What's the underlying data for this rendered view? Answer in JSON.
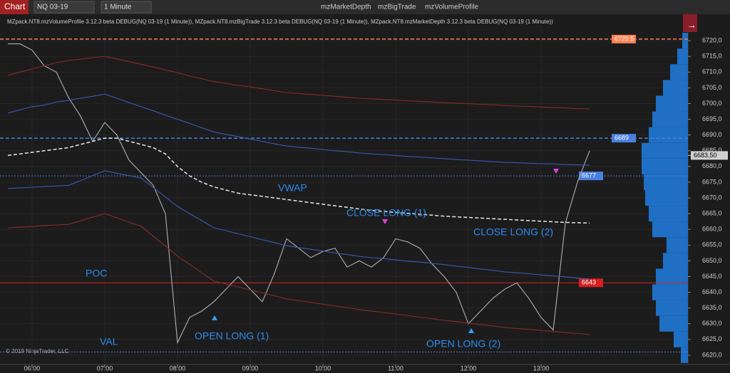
{
  "ui": {
    "window_title": "Chart",
    "instrument": "NQ 03-19",
    "interval": "1 Minute",
    "tools": [
      "mzMarketDepth",
      "mzBigTrade",
      "mzVolumeProfile"
    ],
    "indicator_line": "MZpack.NT8.mzVolumeProfile 3.12.3 beta DEBUG(NQ 03-19 (1 Minute)), MZpack.NT8.mzBigTrade 3.12.3 beta DEBUG(NQ 03-19 (1 Minute)), MZpack.NT8.mzMarketDepth 3.12.3 beta DEBUG(NQ 03-19 (1 Minute))",
    "copyright": "© 2019 NinjaTrader, LLC"
  },
  "chart_data": {
    "type": "line",
    "x": [
      "05:40",
      "05:50",
      "06:00",
      "06:10",
      "06:20",
      "06:30",
      "06:40",
      "06:50",
      "07:00",
      "07:10",
      "07:20",
      "07:30",
      "07:40",
      "07:50",
      "08:00",
      "08:10",
      "08:20",
      "08:30",
      "08:40",
      "08:50",
      "09:00",
      "09:10",
      "09:20",
      "09:30",
      "09:40",
      "09:50",
      "10:00",
      "10:10",
      "10:20",
      "10:30",
      "10:40",
      "10:50",
      "11:00",
      "11:10",
      "11:20",
      "11:30",
      "11:40",
      "11:50",
      "12:00",
      "12:10",
      "12:20",
      "12:30",
      "12:40",
      "12:50",
      "13:00",
      "13:10",
      "13:20",
      "13:30",
      "13:40"
    ],
    "xticks": [
      "06:00",
      "07:00",
      "08:00",
      "09:00",
      "10:00",
      "11:00",
      "12:00",
      "13:00"
    ],
    "ylim": [
      6617.5,
      6727.5
    ],
    "yticks": [
      {
        "value": 6620,
        "label": "6620,0"
      },
      {
        "value": 6625,
        "label": "6625,0"
      },
      {
        "value": 6630,
        "label": "6630,0"
      },
      {
        "value": 6635,
        "label": "6635,0"
      },
      {
        "value": 6640,
        "label": "6640,0"
      },
      {
        "value": 6645,
        "label": "6645,0"
      },
      {
        "value": 6650,
        "label": "6650,0"
      },
      {
        "value": 6655,
        "label": "6655,0"
      },
      {
        "value": 6660,
        "label": "6660,0"
      },
      {
        "value": 6665,
        "label": "6665,0"
      },
      {
        "value": 6670,
        "label": "6670,0"
      },
      {
        "value": 6675,
        "label": "6675,0"
      },
      {
        "value": 6680,
        "label": "6680,0"
      },
      {
        "value": 6685,
        "label": "6685,0"
      },
      {
        "value": 6690,
        "label": "6690,0"
      },
      {
        "value": 6695,
        "label": "6695,0"
      },
      {
        "value": 6700,
        "label": "6700,0"
      },
      {
        "value": 6705,
        "label": "6705,0"
      },
      {
        "value": 6710,
        "label": "6710,0"
      },
      {
        "value": 6715,
        "label": "6715,0"
      },
      {
        "value": 6720,
        "label": "6720,0"
      }
    ],
    "grid": true,
    "series": [
      {
        "color": "#b0b0b0",
        "dash": "solid",
        "values": [
          6719,
          6719,
          6717,
          6712,
          6710,
          6702,
          6696,
          6688,
          6694,
          6690,
          6682,
          6678,
          6674,
          6665,
          6624,
          6632,
          6634,
          6637,
          6641,
          6645,
          6641,
          6637,
          6646,
          6657,
          6654,
          6651,
          6653,
          6654,
          6648,
          6650,
          6648,
          6651,
          6657,
          6656,
          6654,
          6649,
          6645,
          6640,
          6630,
          6634,
          6638,
          6641,
          6643,
          6638,
          6632,
          6628,
          6662,
          6675,
          6685
        ]
      },
      {
        "color": "#e8e8e8",
        "dash": "dashed",
        "values": [
          6683.5,
          6684,
          6684.5,
          6685,
          6685.5,
          6686,
          6687,
          6688,
          6689,
          6689,
          6688,
          6687,
          6686,
          6684,
          6680,
          6677,
          6675,
          6673.5,
          6672.5,
          6671.5,
          6671,
          6670.5,
          6670,
          6669.5,
          6669,
          6668.5,
          6668,
          6667.5,
          6667,
          6666.5,
          6666,
          6665.7,
          6665.4,
          6665.1,
          6664.8,
          6664.5,
          6664.2,
          6664,
          6663.8,
          6663.6,
          6663.4,
          6663.2,
          6663,
          6662.8,
          6662.6,
          6662.4,
          6662.2,
          6662.1,
          6662
        ]
      },
      {
        "color": "#3b5bb5",
        "dash": "solid",
        "values": [
          6697,
          6698,
          6699,
          6699.5,
          6700.5,
          6701,
          6701.7,
          6702.3,
          6703,
          6701.7,
          6700.3,
          6699,
          6697.7,
          6696.3,
          6695,
          6693.7,
          6692.3,
          6691,
          6690.2,
          6689.5,
          6688.7,
          6688,
          6687.2,
          6686.5,
          6686.1,
          6685.8,
          6685.4,
          6685,
          6684.7,
          6684.3,
          6684,
          6683.8,
          6683.5,
          6683.2,
          6683,
          6682.7,
          6682.5,
          6682.2,
          6682,
          6681.8,
          6681.5,
          6681.3,
          6681.2,
          6681,
          6680.9,
          6680.8,
          6680.6,
          6680.5,
          6680.4
        ]
      },
      {
        "color": "#8b2a2a",
        "dash": "solid",
        "values": [
          6709,
          6710,
          6711,
          6712,
          6713,
          6713.7,
          6714.1,
          6714.6,
          6715,
          6714.2,
          6713.3,
          6712.5,
          6711.6,
          6710.7,
          6709.8,
          6708.8,
          6707.9,
          6707,
          6706.4,
          6705.8,
          6705.3,
          6704.7,
          6704.1,
          6703.5,
          6703.2,
          6702.9,
          6702.6,
          6702.3,
          6702,
          6701.7,
          6701.5,
          6701.3,
          6701.1,
          6700.9,
          6700.7,
          6700.5,
          6700.3,
          6700.1,
          6700,
          6699.8,
          6699.6,
          6699.4,
          6699.2,
          6699.1,
          6698.9,
          6698.7,
          6698.6,
          6698.4,
          6698.3
        ]
      },
      {
        "color": "#3b5bb5",
        "dash": "solid",
        "values": [
          6673,
          6673.2,
          6673.4,
          6673.6,
          6673.8,
          6674,
          6675.5,
          6677.1,
          6678.6,
          6677.8,
          6677.1,
          6676.3,
          6673.3,
          6670.3,
          6667.3,
          6665,
          6662.8,
          6660.5,
          6659.6,
          6658.6,
          6657.7,
          6656.7,
          6655.8,
          6654.8,
          6654.2,
          6653.7,
          6653.1,
          6652.5,
          6652,
          6651.4,
          6651,
          6650.7,
          6650.3,
          6649.9,
          6649.6,
          6649.2,
          6648.8,
          6648.3,
          6647.9,
          6647.4,
          6647,
          6646.5,
          6646.2,
          6645.9,
          6645.5,
          6645.2,
          6644.9,
          6644.5,
          6644.2
        ]
      },
      {
        "color": "#8b2a2a",
        "dash": "solid",
        "values": [
          6660.5,
          6660.7,
          6660.9,
          6661.2,
          6661.4,
          6661.6,
          6662.7,
          6663.9,
          6665,
          6663.7,
          6662.3,
          6661,
          6657.8,
          6654.7,
          6651.5,
          6648.9,
          6646.2,
          6643.6,
          6642.6,
          6641.7,
          6640.8,
          6639.8,
          6638.9,
          6637.9,
          6637.3,
          6636.8,
          6636.2,
          6635.6,
          6635.1,
          6634.5,
          6634,
          6633.6,
          6633.1,
          6632.6,
          6632.1,
          6631.6,
          6631.1,
          6630.7,
          6630.2,
          6629.7,
          6629.3,
          6628.8,
          6628.5,
          6628.2,
          6627.9,
          6627.5,
          6627.2,
          6626.9,
          6626.6
        ]
      }
    ],
    "levels": [
      {
        "value": 6720.5,
        "label": "6720.5",
        "color": "#ff7f50",
        "dash": "dashed"
      },
      {
        "value": 6689,
        "label": "6689",
        "color": "#4a7fe0",
        "dash": "dashed"
      },
      {
        "value": 6677,
        "label": "6677",
        "color": "#4a7fe0",
        "dash": "dotted"
      },
      {
        "value": 6643,
        "label": "6643",
        "color": "#d42020",
        "dash": "solid"
      },
      {
        "value": 6621,
        "color": "#4a7fe0",
        "dash": "dotted"
      }
    ],
    "last_price": {
      "value": 6683.5,
      "label": "6683,50"
    },
    "profile": {
      "color": "#1f6fc5",
      "levels": [
        6620,
        6625,
        6630,
        6635,
        6640,
        6645,
        6650,
        6655,
        6660,
        6665,
        6670,
        6675,
        6680,
        6685,
        6690,
        6695,
        6700,
        6705,
        6710,
        6715,
        6720
      ],
      "values": [
        10,
        20,
        40,
        45,
        50,
        45,
        35,
        30,
        50,
        55,
        60,
        62,
        65,
        65,
        55,
        50,
        45,
        35,
        25,
        15,
        8
      ]
    },
    "annotations": [
      "VWAP",
      "CLOSE LONG (1)",
      "CLOSE LONG (2)",
      "POC",
      "OPEN LONG (1)",
      "OPEN LONG (2)",
      "VAL"
    ]
  }
}
